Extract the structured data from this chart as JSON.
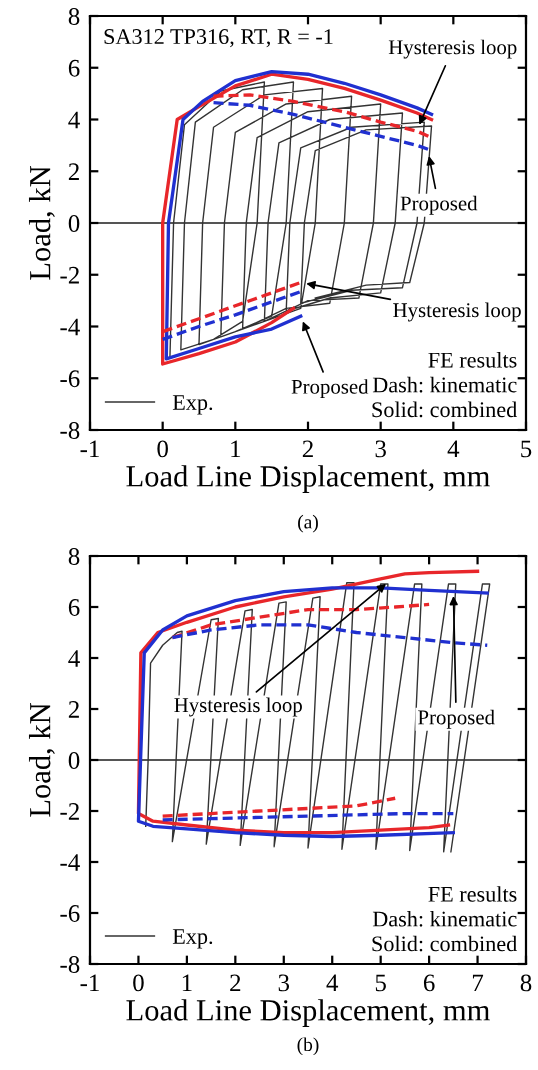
{
  "chart_data": [
    {
      "type": "line",
      "xlabel": "Load Line Displacement, mm",
      "ylabel": "Load, kN",
      "xlim": [
        -1,
        5
      ],
      "ylim": [
        -8,
        8
      ],
      "xticks": [
        -1,
        0,
        1,
        2,
        3,
        4,
        5
      ],
      "yticks": [
        -8,
        -6,
        -4,
        -2,
        0,
        2,
        4,
        6,
        8
      ],
      "grid": false,
      "legend": "bottom left",
      "marker": "none",
      "series": [
        {
          "name": "Exp.",
          "color": "#333333",
          "line_style": "solid",
          "x": [
            0.1,
            0.15,
            0.3,
            0.8,
            1.4,
            1.3,
            1.1,
            0.7,
            0.25,
            0.3,
            0.45,
            1.1,
            1.8,
            1.7,
            1.5,
            1.0,
            0.5,
            0.55,
            0.7,
            1.4,
            2.2,
            2.1,
            1.9,
            1.4,
            0.8,
            0.85,
            1.0,
            1.7,
            2.6,
            2.5,
            2.3,
            1.7,
            1.1,
            1.15,
            1.3,
            2.0,
            3.0,
            2.9,
            2.7,
            2.0,
            1.4,
            1.45,
            1.6,
            2.3,
            3.3,
            3.2,
            3.0,
            2.3,
            1.7,
            1.75,
            1.9,
            2.6,
            3.6,
            3.5,
            3.3,
            2.6,
            1.9,
            1.95,
            2.1,
            2.8,
            3.7,
            3.6,
            3.4,
            2.8,
            2.1
          ],
          "values": [
            -5.2,
            0,
            3.8,
            5.1,
            5.45,
            0,
            -3.8,
            -4.5,
            -4.9,
            0,
            3.9,
            5.15,
            5.45,
            0,
            -3.6,
            -4.2,
            -4.7,
            0,
            3.7,
            4.95,
            5.2,
            0,
            -3.3,
            -3.8,
            -4.4,
            0,
            3.5,
            4.6,
            4.9,
            0,
            -3.1,
            -3.3,
            -4.1,
            0,
            3.3,
            4.3,
            4.6,
            0,
            -2.9,
            -3.0,
            -3.8,
            0,
            3.1,
            4.0,
            4.25,
            0,
            -2.7,
            -2.9,
            -3.4,
            0,
            2.9,
            3.7,
            3.9,
            0,
            -2.5,
            -2.6,
            -3.1,
            0,
            2.8,
            3.6,
            3.75,
            0,
            -2.3,
            -2.4,
            -2.9
          ]
        },
        {
          "color": "#e8262a",
          "line_style": "solid",
          "x": [
            1.8,
            1.5,
            1.0,
            0.5,
            0,
            0,
            0.2,
            0.5,
            1.0,
            1.5,
            2.0,
            2.5,
            3.0,
            3.5,
            3.7
          ],
          "values": [
            -3.3,
            -3.85,
            -4.6,
            -5.05,
            -5.45,
            0,
            4.0,
            4.5,
            5.3,
            5.75,
            5.55,
            5.2,
            4.75,
            4.25,
            4.0
          ]
        },
        {
          "color": "#2030d0",
          "line_style": "solid",
          "x": [
            1.9,
            1.5,
            1.0,
            0.5,
            0.05,
            0.08,
            0.28,
            0.55,
            1.0,
            1.5,
            2.0,
            2.5,
            3.0,
            3.5,
            3.7
          ],
          "values": [
            -3.6,
            -4.1,
            -4.4,
            -4.85,
            -5.25,
            0,
            4.0,
            4.7,
            5.5,
            5.85,
            5.75,
            5.4,
            4.95,
            4.45,
            4.2
          ]
        },
        {
          "color": "#e8262a",
          "line_style": "dashed",
          "x": [
            0.7,
            1.2,
            1.8,
            2.5,
            3.0,
            3.5,
            3.7,
            null,
            0,
            0.5,
            1.0,
            1.5,
            1.9
          ],
          "values": [
            4.9,
            4.95,
            4.7,
            4.3,
            3.9,
            3.55,
            3.3,
            null,
            -4.2,
            -3.7,
            -3.2,
            -2.7,
            -2.3
          ]
        },
        {
          "color": "#2030d0",
          "line_style": "dashed",
          "x": [
            0.7,
            1.2,
            1.8,
            2.5,
            3.0,
            3.5,
            3.7,
            null,
            0,
            0.5,
            1.0,
            1.5,
            1.9
          ],
          "values": [
            4.65,
            4.55,
            4.2,
            3.7,
            3.35,
            3.0,
            2.8,
            null,
            -4.5,
            -4.0,
            -3.55,
            -3.05,
            -2.65
          ]
        }
      ],
      "ref_lines": [
        {
          "axis": "y",
          "value": 0,
          "color": "#555555"
        }
      ],
      "annotations": [
        "SA312 TP316, RT, R = -1",
        {
          "text": "Hysteresis loop",
          "x": 3.5,
          "y": 3.6
        },
        {
          "text": "Proposed",
          "x": 3.65,
          "y": 2.8
        },
        {
          "text": "Hysteresis loop",
          "x": 1.9,
          "y": -2.3
        },
        {
          "text": "Proposed",
          "x": 1.9,
          "y": -3.6
        },
        "FE results\nDash: kinematic\nSolid: combined",
        "(a)"
      ]
    },
    {
      "type": "line",
      "xlabel": "Load Line Displacement, mm",
      "ylabel": "Load, kN",
      "xlim": [
        -1,
        8
      ],
      "ylim": [
        -8,
        8
      ],
      "xticks": [
        -1,
        0,
        1,
        2,
        3,
        4,
        5,
        6,
        7,
        8
      ],
      "yticks": [
        -8,
        -6,
        -4,
        -2,
        0,
        2,
        4,
        6,
        8
      ],
      "grid": false,
      "legend": "bottom left",
      "marker": "none",
      "series": [
        {
          "name": "Exp.",
          "color": "#333333",
          "line_style": "solid",
          "x": [
            0.15,
            0.2,
            0.25,
            0.5,
            0.8,
            0.9,
            0.7,
            1.5,
            1.65,
            1.4,
            2.2,
            2.35,
            2.1,
            2.9,
            3.05,
            2.8,
            3.6,
            3.75,
            3.5,
            4.3,
            4.45,
            4.2,
            5.0,
            5.15,
            4.9,
            5.7,
            5.85,
            5.6,
            6.4,
            6.55,
            6.3,
            7.1,
            7.25,
            6.45
          ],
          "values": [
            -2.6,
            0,
            3.8,
            4.5,
            5.0,
            5.05,
            -3.2,
            5.5,
            5.55,
            -3.3,
            5.85,
            5.9,
            -3.35,
            6.15,
            6.2,
            -3.4,
            6.35,
            6.4,
            -3.45,
            6.95,
            6.95,
            -3.5,
            6.9,
            6.9,
            -3.5,
            6.9,
            6.9,
            -3.55,
            6.9,
            6.9,
            -3.6,
            6.9,
            6.9,
            -3.6
          ]
        },
        {
          "color": "#e8262a",
          "line_style": "solid",
          "x": [
            6.4,
            6,
            5,
            4,
            3,
            2,
            1,
            0.3,
            0,
            0.05,
            0.4,
            1,
            2,
            3,
            4,
            5,
            5.5,
            6,
            7
          ],
          "values": [
            -2.55,
            -2.65,
            -2.75,
            -2.85,
            -2.85,
            -2.75,
            -2.55,
            -2.4,
            -2.1,
            4.2,
            5.0,
            5.4,
            6.0,
            6.4,
            6.7,
            7.1,
            7.3,
            7.35,
            7.4
          ]
        },
        {
          "color": "#2030d0",
          "line_style": "solid",
          "x": [
            6.5,
            5,
            4,
            3,
            2,
            1,
            0.3,
            0,
            0.12,
            0.5,
            1,
            2,
            3,
            4,
            5,
            6,
            7.2
          ],
          "values": [
            -2.85,
            -2.95,
            -3.0,
            -2.95,
            -2.85,
            -2.7,
            -2.6,
            -2.4,
            4.2,
            5.1,
            5.65,
            6.25,
            6.6,
            6.75,
            6.75,
            6.65,
            6.55
          ]
        },
        {
          "color": "#e8262a",
          "line_style": "dashed",
          "x": [
            0.7,
            1.5,
            2.5,
            3.5,
            4.5,
            5.3,
            6,
            null,
            0.5,
            1.5,
            2.5,
            3.5,
            4.5,
            5.3
          ],
          "values": [
            4.8,
            5.3,
            5.6,
            5.9,
            5.9,
            6.0,
            6.1,
            null,
            -2.2,
            -2.1,
            -2.0,
            -1.9,
            -1.8,
            -1.5
          ]
        },
        {
          "color": "#2030d0",
          "line_style": "dashed",
          "x": [
            0.7,
            1.5,
            2.5,
            3.5,
            4.5,
            5.5,
            6.5,
            7.2,
            null,
            0.5,
            1.5,
            2.5,
            3.5,
            4.5,
            5.5,
            6.5
          ],
          "values": [
            4.8,
            5.1,
            5.3,
            5.3,
            5.0,
            4.8,
            4.6,
            4.5,
            null,
            -2.35,
            -2.3,
            -2.25,
            -2.2,
            -2.15,
            -2.1,
            -2.1
          ]
        }
      ],
      "ref_lines": [
        {
          "axis": "y",
          "value": 0,
          "color": "#555555"
        }
      ],
      "annotations": [
        {
          "text": "Hysteresis loop",
          "x": 5.2,
          "y": 7.05
        },
        {
          "text": "Proposed",
          "x": 6.5,
          "y": 6.65
        },
        "FE results\nDash: kinematic\nSolid: combined",
        "(b)"
      ]
    }
  ]
}
